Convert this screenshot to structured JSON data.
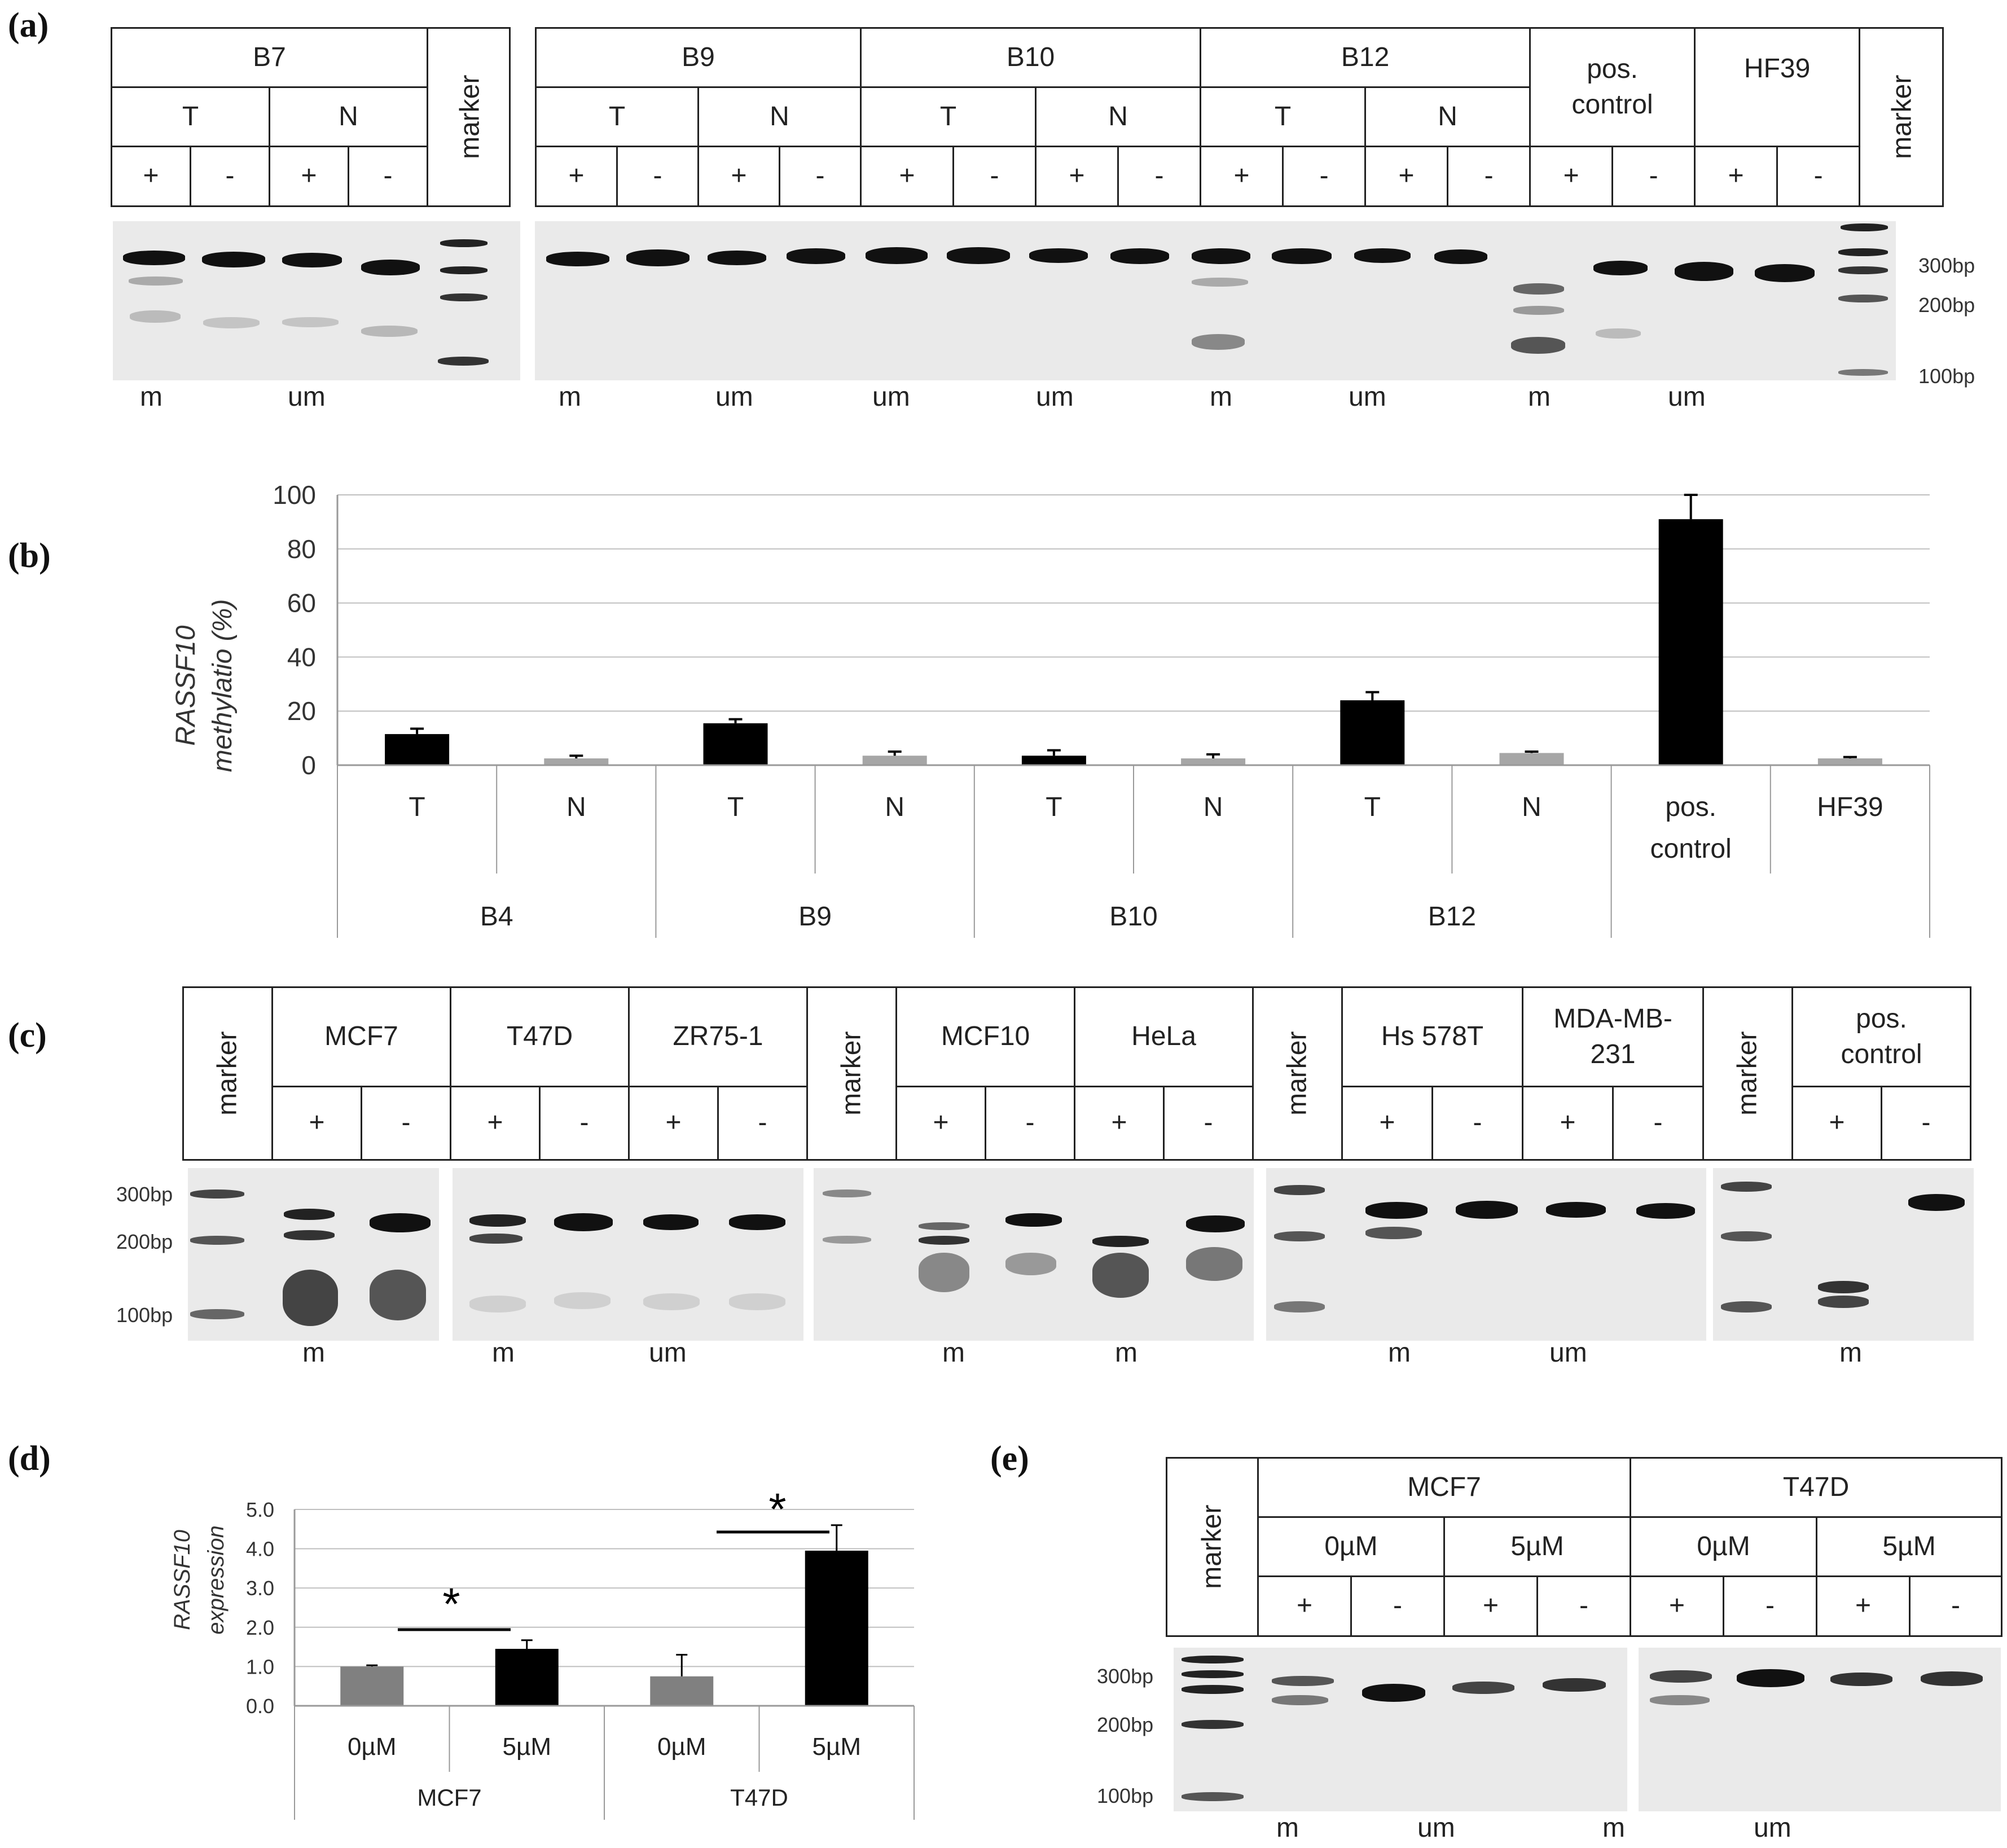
{
  "panels": {
    "a": "(a)",
    "b": "(b)",
    "c": "(c)",
    "d": "(d)",
    "e": "(e)"
  },
  "panel_a": {
    "left_table": {
      "sample": "B7",
      "conds": [
        "T",
        "N"
      ],
      "signs": [
        "+",
        "-",
        "+",
        "-"
      ],
      "marker": "marker"
    },
    "right_table": {
      "groups": [
        "B9",
        "B10",
        "B12"
      ],
      "conds": [
        "T",
        "N"
      ],
      "pos_control": "pos. control",
      "hf39": "HF39",
      "marker": "marker",
      "signs": [
        "+",
        "-",
        "+",
        "-",
        "+",
        "-",
        "+",
        "-",
        "+",
        "-",
        "+",
        "-",
        "+",
        "-",
        "+",
        "-"
      ]
    },
    "size_labels": [
      "300bp",
      "200bp",
      "100bp"
    ],
    "bottom_left": [
      "m",
      "um"
    ],
    "bottom_right": [
      "m",
      "um",
      "um",
      "um",
      "m",
      "um",
      "m",
      "um"
    ]
  },
  "panel_b": {
    "ylabel_line1": "RASSF10",
    "ylabel_line2": "methylatio (%)",
    "groups": [
      "B4",
      "B9",
      "B10",
      "B12"
    ],
    "chart_data": {
      "type": "bar",
      "categories": [
        "T",
        "N",
        "T",
        "N",
        "T",
        "N",
        "T",
        "N",
        "pos. control",
        "HF39"
      ],
      "groups": [
        "B4",
        "B9",
        "B10",
        "B12"
      ],
      "values": [
        11.5,
        2.5,
        15.5,
        3.5,
        3.5,
        2.5,
        24,
        4.5,
        91,
        2.5
      ],
      "errors": [
        2,
        1,
        1.5,
        1.5,
        2,
        1.5,
        3,
        0.5,
        9,
        0.5
      ],
      "colors": [
        "#000000",
        "#a6a6a6",
        "#000000",
        "#a6a6a6",
        "#000000",
        "#a6a6a6",
        "#000000",
        "#a6a6a6",
        "#000000",
        "#a6a6a6"
      ],
      "ylim": [
        0,
        100
      ],
      "yticks": [
        0,
        20,
        40,
        60,
        80,
        100
      ],
      "grid": true
    }
  },
  "panel_c": {
    "header": [
      "marker",
      "MCF7",
      "T47D",
      "ZR75-1",
      "marker",
      "MCF10",
      "HeLa",
      "marker",
      "Hs 578T",
      "MDA-MB-231",
      "marker",
      "pos. control"
    ],
    "signs": [
      "+",
      "-",
      "+",
      "-",
      "+",
      "-",
      "+",
      "-",
      "+",
      "-",
      "+",
      "-",
      "+",
      "-",
      "+",
      "-"
    ],
    "size_labels": [
      "300bp",
      "200bp",
      "100bp"
    ],
    "bottom": [
      "m",
      "m",
      "um",
      "m",
      "m",
      "m",
      "um",
      "m"
    ]
  },
  "panel_d": {
    "ylabel_line1": "RASSF10",
    "ylabel_line2": "expression",
    "star": "*",
    "chart_data": {
      "type": "bar",
      "categories": [
        "0µM",
        "5µM",
        "0µM",
        "5µM"
      ],
      "groups": [
        "MCF7",
        "T47D"
      ],
      "values": [
        1.0,
        1.45,
        0.75,
        3.95
      ],
      "errors": [
        0.03,
        0.22,
        0.55,
        0.65
      ],
      "colors": [
        "#808080",
        "#000000",
        "#808080",
        "#000000"
      ],
      "ylim": [
        0,
        5
      ],
      "yticks": [
        "0.0",
        "1.0",
        "2.0",
        "3.0",
        "4.0",
        "5.0"
      ],
      "grid": true
    }
  },
  "panel_e": {
    "marker": "marker",
    "lines": [
      "MCF7",
      "T47D"
    ],
    "doses": [
      "0µM",
      "5µM",
      "0µM",
      "5µM"
    ],
    "signs": [
      "+",
      "-",
      "+",
      "-",
      "+",
      "-",
      "+",
      "-"
    ],
    "size_labels": [
      "300bp",
      "200bp",
      "100bp"
    ],
    "bottom": [
      "m",
      "um",
      "m",
      "um"
    ]
  }
}
